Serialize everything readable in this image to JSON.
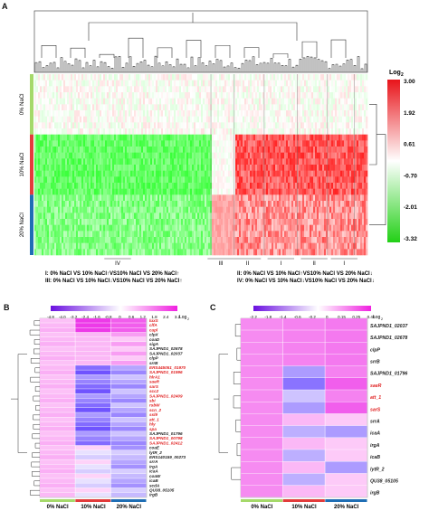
{
  "panel_a": {
    "label": "A",
    "legend": {
      "title": "Log",
      "title_sub": "2",
      "ticks": [
        "3.00",
        "1.92",
        "0.61",
        "-0.70",
        "-2.01",
        "-3.32"
      ]
    },
    "rows": [
      "0% NaCl",
      "10% NaCl",
      "20% NaCl"
    ],
    "row_colors": [
      "#a5d96a",
      "#e23b3b",
      "#1f6eb4"
    ],
    "clusters": [
      "IV",
      "III",
      "II",
      "I",
      "II",
      "I"
    ],
    "footnote_left": [
      "I: 0% NaCl VS 10% NaCl↑VS10% NaCl VS 20% NaCl↑",
      "III: 0% NaCl VS 10% NaCl↓VS10% NaCl VS 20% NaCl↑"
    ],
    "footnote_right": [
      "II: 0% NaCl VS 10% NaCl↑VS10% NaCl VS 20% NaCl↓",
      "IV: 0% NaCl VS 10% NaCl↓VS10% NaCl VS 20% NaCl↓"
    ]
  },
  "panel_b": {
    "label": "B",
    "legend": {
      "title": "Log",
      "title_sub": "2",
      "ticks": [
        "-4.8",
        "-4.0",
        "-3.2",
        "-2.4",
        "-1.6",
        "-0.8",
        "0",
        "0.6",
        "1.2",
        "1.8",
        "2.4",
        "3.2"
      ]
    },
    "columns": [
      "0% NaCl",
      "10% NaCl",
      "20% NaCl"
    ],
    "genes": [
      {
        "name": "luxS",
        "red": true
      },
      {
        "name": "clfA",
        "red": true
      },
      {
        "name": "capl",
        "red": true
      },
      {
        "name": "clpX",
        "red": false
      },
      {
        "name": "coaD",
        "red": false
      },
      {
        "name": "sigA",
        "red": false
      },
      {
        "name": "SAJPND1_02678",
        "red": false
      },
      {
        "name": "SAJPND1_02037",
        "red": false
      },
      {
        "name": "clpP",
        "red": false
      },
      {
        "name": "srrB",
        "red": false
      },
      {
        "name": "ERS445051_01970",
        "red": true
      },
      {
        "name": "SAJPND1_01996",
        "red": true
      },
      {
        "name": "hlrA1",
        "red": true
      },
      {
        "name": "saeR",
        "red": true
      },
      {
        "name": "sarS",
        "red": true
      },
      {
        "name": "scc2",
        "red": true
      },
      {
        "name": "SAJPND1_02409",
        "red": true
      },
      {
        "name": "sbi",
        "red": true
      },
      {
        "name": "rsbW",
        "red": true
      },
      {
        "name": "scn_2",
        "red": true
      },
      {
        "name": "ssl9",
        "red": true
      },
      {
        "name": "att_1",
        "red": true
      },
      {
        "name": "hly",
        "red": true
      },
      {
        "name": "spa",
        "red": true
      },
      {
        "name": "SAJPND1_01796",
        "red": false
      },
      {
        "name": "SAJPND1_00798",
        "red": true
      },
      {
        "name": "SAJPND1_02412",
        "red": true
      },
      {
        "name": "coaE",
        "red": false
      },
      {
        "name": "lytR_2",
        "red": false
      },
      {
        "name": "ERS140159_00273",
        "red": false
      },
      {
        "name": "srrA",
        "red": false
      },
      {
        "name": "irgA",
        "red": false
      },
      {
        "name": "icaA",
        "red": false
      },
      {
        "name": "coaW",
        "red": false
      },
      {
        "name": "icaB",
        "red": false
      },
      {
        "name": "scdA",
        "red": false
      },
      {
        "name": "QU38_05105",
        "red": false
      },
      {
        "name": "irgB",
        "red": false
      }
    ]
  },
  "panel_c": {
    "label": "C",
    "legend": {
      "title": "Log",
      "title_sub": "2",
      "ticks": [
        "-2.2",
        "-1.8",
        "-1.4",
        "-0.6",
        "-0.2",
        "0",
        "0.15",
        "0.25",
        "0.40"
      ]
    },
    "columns": [
      "0% NaCl",
      "10% NaCl",
      "20% NaCl"
    ],
    "genes": [
      {
        "name": "SAJPND1_02037",
        "red": false
      },
      {
        "name": "SAJPND1_02678",
        "red": false
      },
      {
        "name": "clpP",
        "red": false
      },
      {
        "name": "srrB",
        "red": false
      },
      {
        "name": "SAJPND1_01796",
        "red": false
      },
      {
        "name": "saeR",
        "red": true
      },
      {
        "name": "att_1",
        "red": true
      },
      {
        "name": "sarS",
        "red": true
      },
      {
        "name": "srrA",
        "red": false
      },
      {
        "name": "icaA",
        "red": false
      },
      {
        "name": "irgA",
        "red": false
      },
      {
        "name": "icaB",
        "red": false
      },
      {
        "name": "lytR_2",
        "red": false
      },
      {
        "name": "QU38_05105",
        "red": false
      },
      {
        "name": "irgB",
        "red": false
      }
    ]
  }
}
